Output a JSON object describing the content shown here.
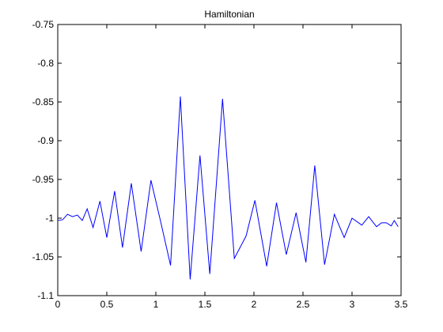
{
  "chart_data": {
    "type": "line",
    "title": "Hamiltonian",
    "xlabel": "",
    "ylabel": "",
    "xlim": [
      0,
      3.5
    ],
    "ylim": [
      -1.1,
      -0.75
    ],
    "xticks": [
      0,
      0.5,
      1,
      1.5,
      2,
      2.5,
      3,
      3.5
    ],
    "xtick_labels": [
      "0",
      "0.5",
      "1",
      "1.5",
      "2",
      "2.5",
      "3",
      "3.5"
    ],
    "yticks": [
      -0.75,
      -0.8,
      -0.85,
      -0.9,
      -0.95,
      -1,
      -1.05,
      -1.1
    ],
    "ytick_labels": [
      "-0.75",
      "-0.8",
      "-0.85",
      "-0.9",
      "-0.95",
      "-1",
      "-1.05",
      "-1.1"
    ],
    "grid": false,
    "box": true,
    "line_color": "#0000ff",
    "axis_color": "#000000",
    "series": [
      {
        "x": [
          0.0,
          0.05,
          0.1,
          0.15,
          0.2,
          0.25,
          0.3,
          0.36,
          0.43,
          0.5,
          0.58,
          0.66,
          0.75,
          0.85,
          0.95,
          1.05,
          1.15,
          1.25,
          1.35,
          1.45,
          1.55,
          1.68,
          1.8,
          1.92,
          2.01,
          2.13,
          2.23,
          2.33,
          2.43,
          2.53,
          2.62,
          2.72,
          2.82,
          2.92,
          3.0,
          3.1,
          3.17,
          3.25,
          3.3,
          3.35,
          3.4,
          3.43,
          3.47
        ],
        "y": [
          -1.003,
          -1.002,
          -0.995,
          -0.998,
          -0.996,
          -1.003,
          -0.988,
          -1.012,
          -0.978,
          -1.025,
          -0.965,
          -1.038,
          -0.955,
          -1.043,
          -0.951,
          -1.005,
          -1.061,
          -0.843,
          -1.079,
          -0.919,
          -1.072,
          -0.846,
          -1.052,
          -1.023,
          -0.977,
          -1.062,
          -0.98,
          -1.047,
          -0.993,
          -1.057,
          -0.932,
          -1.06,
          -0.995,
          -1.025,
          -1.0,
          -1.009,
          -0.998,
          -1.011,
          -1.006,
          -1.006,
          -1.01,
          -1.003,
          -1.011
        ]
      }
    ]
  }
}
